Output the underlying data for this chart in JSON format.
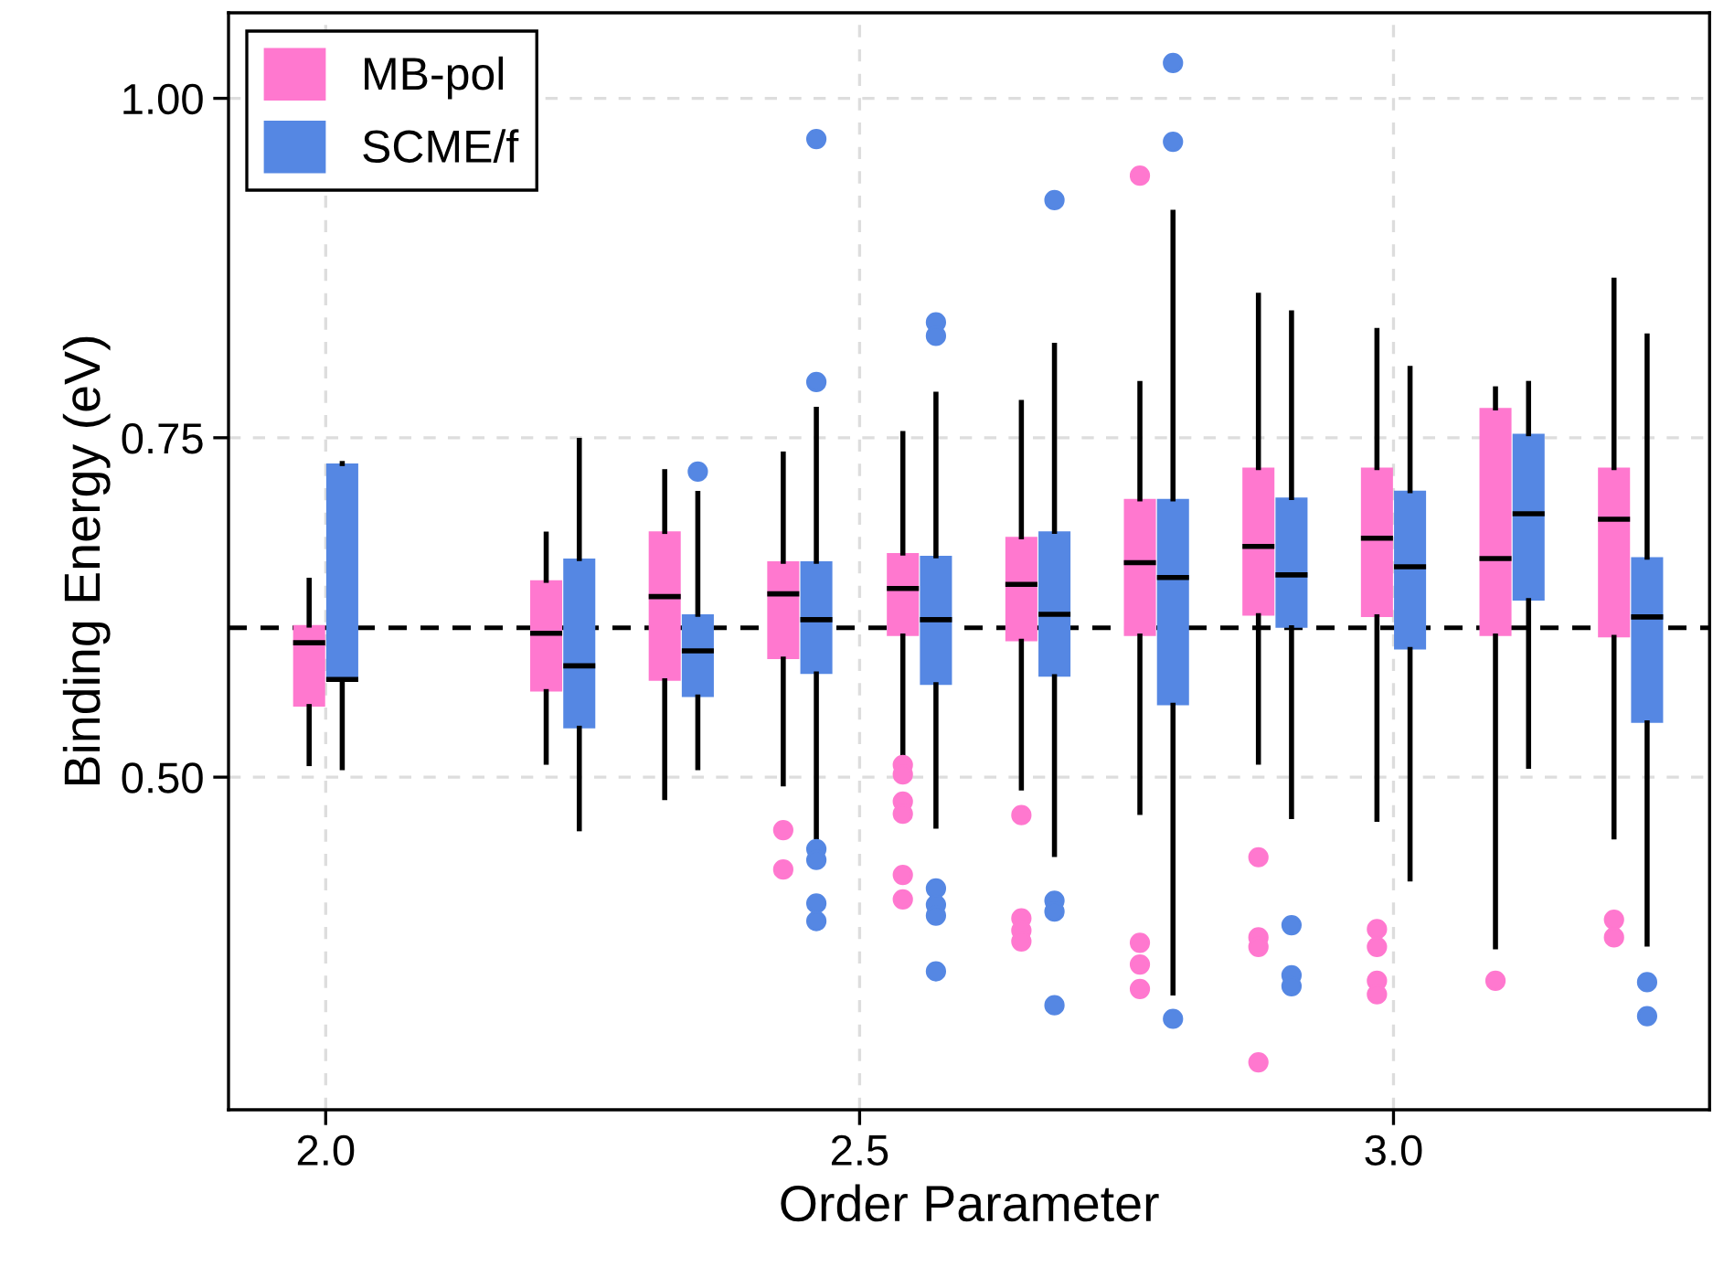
{
  "chart_data": {
    "type": "box",
    "xlabel": "Order Parameter",
    "ylabel": "Binding Energy (eV)",
    "x": [
      2.0,
      2.222,
      2.333,
      2.444,
      2.556,
      2.667,
      2.778,
      2.889,
      3.0,
      3.111,
      3.222
    ],
    "xlim": [
      1.909,
      3.296
    ],
    "xticks": [
      {
        "value": 2.0,
        "label": "2.0"
      },
      {
        "value": 2.5,
        "label": "2.5"
      },
      {
        "value": 3.0,
        "label": "3.0"
      }
    ],
    "ylim": [
      0.255,
      1.063
    ],
    "yticks": [
      {
        "value": 0.5,
        "label": "0.50"
      },
      {
        "value": 0.75,
        "label": "0.75"
      },
      {
        "value": 1.0,
        "label": "1.00"
      }
    ],
    "grid": true,
    "legend": "top left",
    "ref_lines": [
      {
        "axis": "y",
        "value": 0.61,
        "color": "#000000",
        "line_style": "dashed"
      }
    ],
    "series": [
      {
        "name": "MB-pol",
        "color": "#ff78cf",
        "boxes": [
          {
            "low": 0.51,
            "q1": 0.552,
            "median": 0.599,
            "q3": 0.612,
            "high": 0.645
          },
          {
            "low": 0.511,
            "q1": 0.563,
            "median": 0.606,
            "q3": 0.645,
            "high": 0.679
          },
          {
            "low": 0.485,
            "q1": 0.571,
            "median": 0.633,
            "q3": 0.681,
            "high": 0.725
          },
          {
            "low": 0.495,
            "q1": 0.587,
            "median": 0.635,
            "q3": 0.659,
            "high": 0.738,
            "outliers": [
              0.461,
              0.432
            ]
          },
          {
            "low": 0.513,
            "q1": 0.604,
            "median": 0.639,
            "q3": 0.665,
            "high": 0.753,
            "outliers": [
              0.509,
              0.502,
              0.482,
              0.473,
              0.428,
              0.41
            ]
          },
          {
            "low": 0.492,
            "q1": 0.6,
            "median": 0.642,
            "q3": 0.677,
            "high": 0.776,
            "outliers": [
              0.472,
              0.396,
              0.387,
              0.379
            ]
          },
          {
            "low": 0.474,
            "q1": 0.604,
            "median": 0.658,
            "q3": 0.705,
            "high": 0.79,
            "outliers": [
              0.943,
              0.378,
              0.362,
              0.344
            ]
          },
          {
            "low": 0.511,
            "q1": 0.619,
            "median": 0.67,
            "q3": 0.728,
            "high": 0.855,
            "outliers": [
              0.441,
              0.382,
              0.375,
              0.29
            ]
          },
          {
            "low": 0.469,
            "q1": 0.618,
            "median": 0.676,
            "q3": 0.728,
            "high": 0.829,
            "outliers": [
              0.388,
              0.375,
              0.35,
              0.34
            ]
          },
          {
            "low": 0.375,
            "q1": 0.604,
            "median": 0.661,
            "q3": 0.772,
            "high": 0.786,
            "outliers": [
              0.35
            ]
          },
          {
            "low": 0.456,
            "q1": 0.603,
            "median": 0.69,
            "q3": 0.728,
            "high": 0.866,
            "outliers": [
              0.395,
              0.382
            ]
          }
        ]
      },
      {
        "name": "SCME/f",
        "color": "#5587e3",
        "boxes": [
          {
            "low": 0.507,
            "q1": 0.571,
            "median": 0.572,
            "q3": 0.731,
            "high": 0.731
          },
          {
            "low": 0.462,
            "q1": 0.536,
            "median": 0.582,
            "q3": 0.661,
            "high": 0.748
          },
          {
            "low": 0.507,
            "q1": 0.559,
            "median": 0.593,
            "q3": 0.62,
            "high": 0.709,
            "outliers": [
              0.725
            ]
          },
          {
            "low": 0.456,
            "q1": 0.576,
            "median": 0.616,
            "q3": 0.659,
            "high": 0.771,
            "outliers": [
              0.97,
              0.791,
              0.447,
              0.439,
              0.407,
              0.394
            ]
          },
          {
            "low": 0.464,
            "q1": 0.568,
            "median": 0.616,
            "q3": 0.663,
            "high": 0.782,
            "outliers": [
              0.835,
              0.825,
              0.418,
              0.406,
              0.398,
              0.357
            ]
          },
          {
            "low": 0.443,
            "q1": 0.574,
            "median": 0.62,
            "q3": 0.681,
            "high": 0.818,
            "outliers": [
              0.925,
              0.409,
              0.401,
              0.332
            ]
          },
          {
            "low": 0.341,
            "q1": 0.553,
            "median": 0.647,
            "q3": 0.705,
            "high": 0.916,
            "outliers": [
              1.026,
              0.968,
              0.322
            ]
          },
          {
            "low": 0.471,
            "q1": 0.61,
            "median": 0.649,
            "q3": 0.706,
            "high": 0.842,
            "outliers": [
              0.391,
              0.354,
              0.346
            ]
          },
          {
            "low": 0.425,
            "q1": 0.594,
            "median": 0.655,
            "q3": 0.711,
            "high": 0.801
          },
          {
            "low": 0.508,
            "q1": 0.63,
            "median": 0.694,
            "q3": 0.753,
            "high": 0.79
          },
          {
            "low": 0.377,
            "q1": 0.54,
            "median": 0.618,
            "q3": 0.662,
            "high": 0.825,
            "outliers": [
              0.349,
              0.324
            ]
          }
        ]
      }
    ]
  }
}
